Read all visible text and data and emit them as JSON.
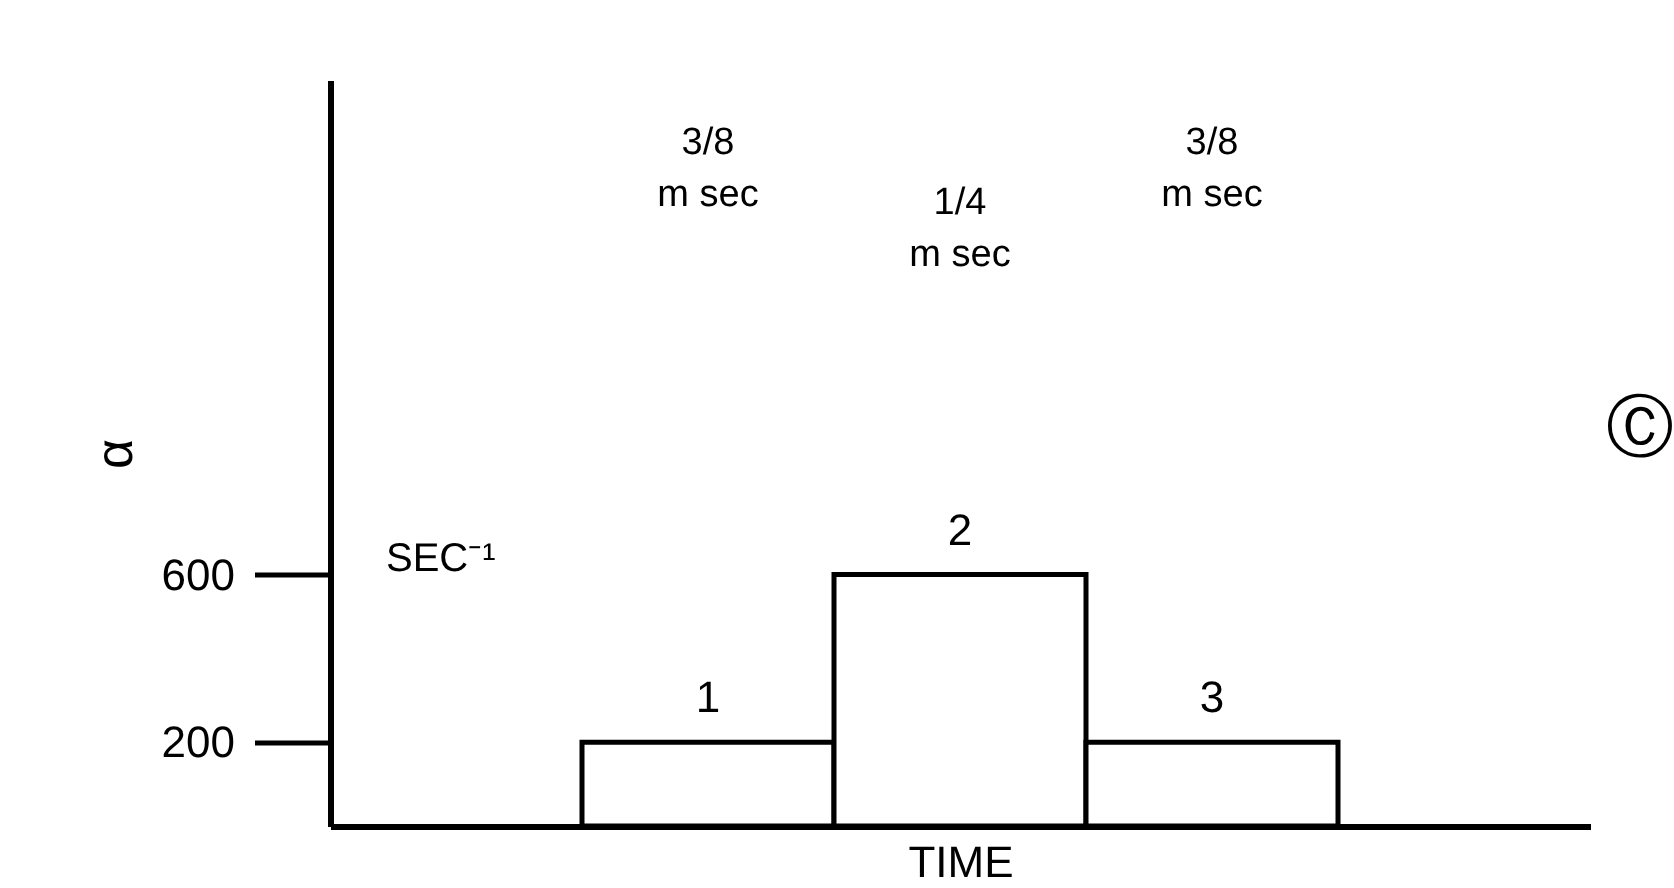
{
  "chart_data": {
    "type": "bar",
    "xlabel": "TIME",
    "ylabel": "α",
    "categories": [
      "1",
      "2",
      "3"
    ],
    "values": [
      200,
      600,
      200
    ],
    "color": "#ffffff",
    "ylim": [
      0,
      1780
    ],
    "yticks": [
      200,
      600
    ],
    "annotations": [
      "3/8 m sec",
      "1/4 m sec",
      "3/8 m sec",
      "SEC⁻¹",
      "Ⓒ"
    ]
  }
}
